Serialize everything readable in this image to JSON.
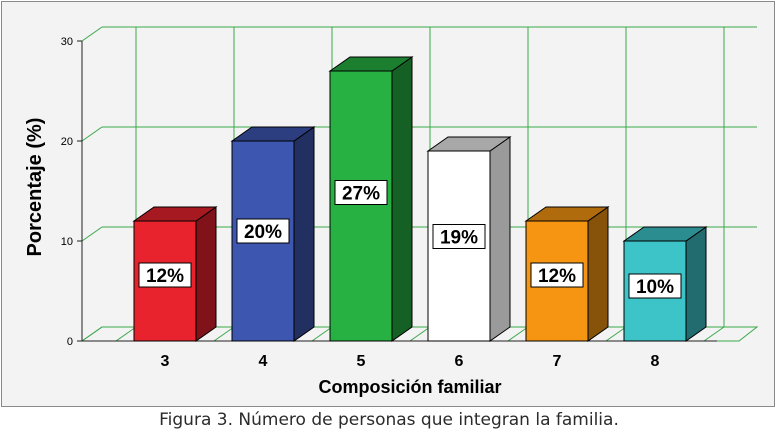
{
  "chart_data": {
    "type": "bar",
    "categories": [
      "3",
      "4",
      "5",
      "6",
      "7",
      "8"
    ],
    "values": [
      12,
      20,
      27,
      19,
      12,
      10
    ],
    "data_labels": [
      "12%",
      "20%",
      "27%",
      "19%",
      "12%",
      "10%"
    ],
    "bar_colors": [
      "#e8232d",
      "#3d56b0",
      "#27b143",
      "#ffffff",
      "#f59512",
      "#3dc4c9"
    ],
    "xlabel": "Composición familiar",
    "ylabel": "Porcentaje (%)",
    "yticks": [
      "0",
      "10",
      "20",
      "30"
    ],
    "ylim": [
      0,
      30
    ],
    "grid": true,
    "style": "3d"
  },
  "caption": "Figura 3. Número de personas que integran la familia."
}
